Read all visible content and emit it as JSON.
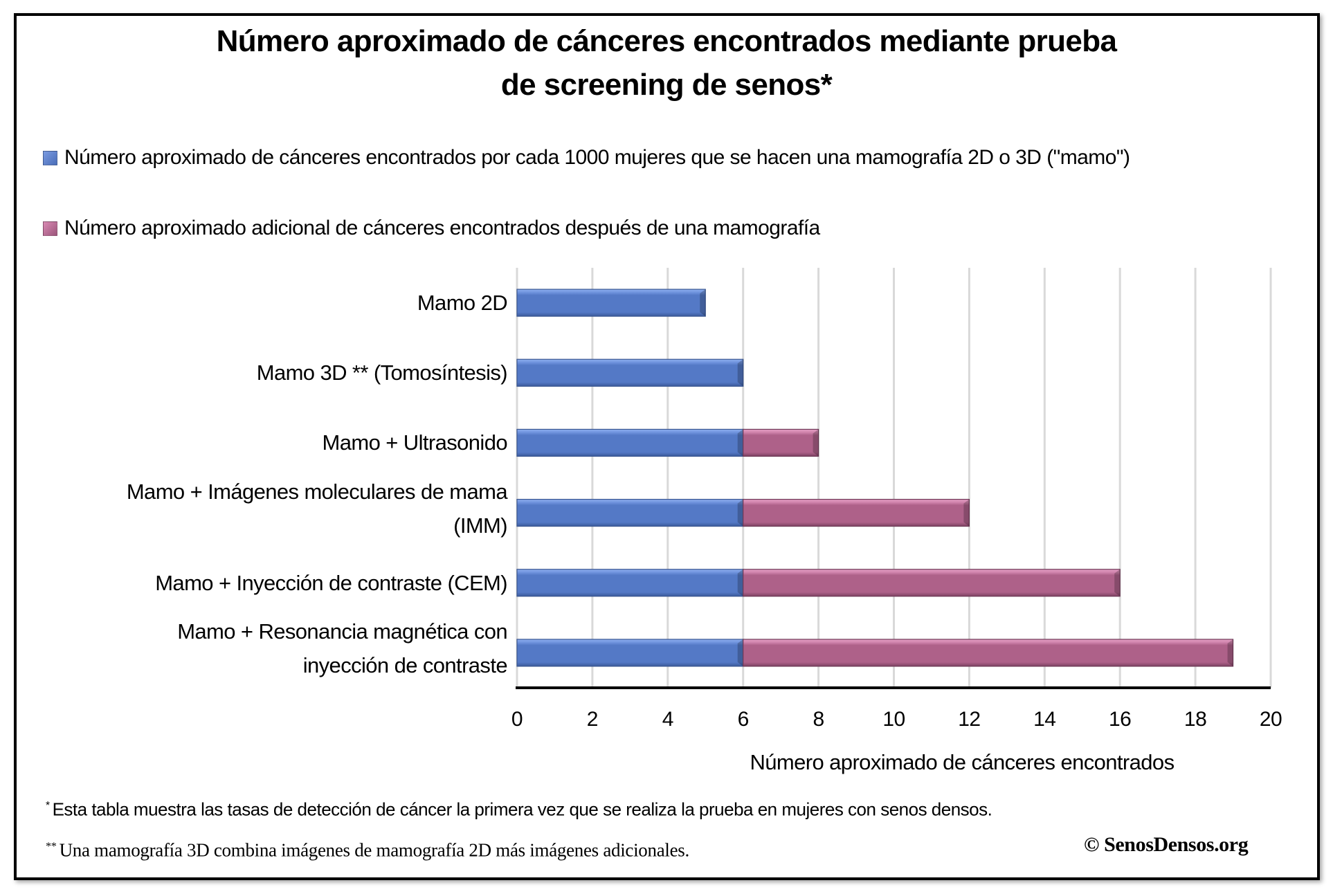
{
  "title_lines": [
    "Número aproximado de cánceres encontrados mediante prueba",
    "de screening de senos*"
  ],
  "legend": [
    {
      "label": "Número aproximado de cánceres encontrados por cada 1000 mujeres que se hacen una mamografía 2D o 3D (\"mamo\")",
      "color": "#5479C6"
    },
    {
      "label": "Número aproximado adicional de cánceres encontrados después de una mamografía",
      "color": "#AE6189"
    }
  ],
  "footnotes": {
    "note1_marker": "*",
    "note1_text": "Esta tabla muestra las tasas de detección de cáncer la primera vez que se realiza la prueba en mujeres con senos densos.",
    "note2_marker": "**",
    "note2_text": "Una mamografía 3D combina imágenes de mamografía 2D más imágenes adicionales.",
    "copyright": "© SenosDensos.org"
  },
  "chart_data": {
    "type": "bar",
    "orientation": "horizontal",
    "stacked": true,
    "title": "Número aproximado de cánceres encontrados mediante prueba de screening de senos*",
    "xlabel": "Número aproximado de cánceres encontrados",
    "ylabel": "",
    "xlim": [
      0,
      20
    ],
    "xticks": [
      "0",
      "2",
      "4",
      "6",
      "8",
      "10",
      "12",
      "14",
      "16",
      "18",
      "20"
    ],
    "grid": true,
    "legend_position": "top",
    "categories": [
      [
        "Mamo 2D"
      ],
      [
        "Mamo 3D ** (Tomosíntesis)"
      ],
      [
        "Mamo + Ultrasonido"
      ],
      [
        "Mamo + Imágenes moleculares de mama",
        "(IMM)"
      ],
      [
        "Mamo + Inyección de contraste (CEM)"
      ],
      [
        "Mamo + Resonancia magnética con",
        "inyección de contraste"
      ]
    ],
    "series": [
      {
        "name": "Número aproximado de cánceres encontrados por cada 1000 mujeres que se hacen una mamografía 2D o 3D (\"mamo\")",
        "color": "#5479C6",
        "values": [
          5,
          6,
          6,
          6,
          6,
          6
        ]
      },
      {
        "name": "Número aproximado adicional de cánceres encontrados después de una mamografía",
        "color": "#AE6189",
        "values": [
          0,
          0,
          2,
          6,
          10,
          13
        ]
      }
    ]
  }
}
